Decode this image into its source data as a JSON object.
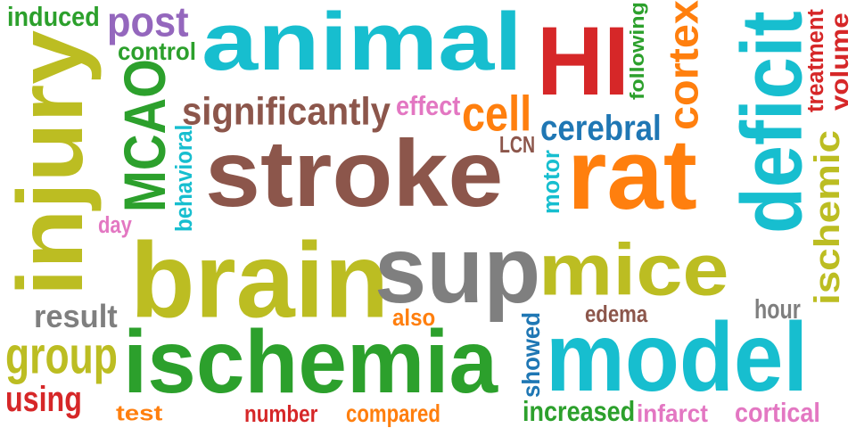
{
  "words": [
    {
      "text": "induced",
      "color": "#2ca02c"
    },
    {
      "text": "post",
      "color": "#9467bd"
    },
    {
      "text": "animal",
      "color": "#17becf"
    },
    {
      "text": "HI",
      "color": "#d62728"
    },
    {
      "text": "following",
      "color": "#2ca02c"
    },
    {
      "text": "cortex",
      "color": "#ff7f0e"
    },
    {
      "text": "deficit",
      "color": "#17becf"
    },
    {
      "text": "treatment",
      "color": "#d62728"
    },
    {
      "text": "volume",
      "color": "#d62728"
    },
    {
      "text": "control",
      "color": "#2ca02c"
    },
    {
      "text": "injury",
      "color": "#bcbd22"
    },
    {
      "text": "MCAO",
      "color": "#2ca02c"
    },
    {
      "text": "significantly",
      "color": "#8c564b"
    },
    {
      "text": "effect",
      "color": "#e377c2"
    },
    {
      "text": "cell",
      "color": "#ff7f0e"
    },
    {
      "text": "cerebral",
      "color": "#1f77b4"
    },
    {
      "text": "behavioral",
      "color": "#17becf"
    },
    {
      "text": "stroke",
      "color": "#8c564b"
    },
    {
      "text": "LCN",
      "color": "#8c564b"
    },
    {
      "text": "rat",
      "color": "#ff7f0e"
    },
    {
      "text": "motor",
      "color": "#17becf"
    },
    {
      "text": "ischemic",
      "color": "#bcbd22"
    },
    {
      "text": "day",
      "color": "#e377c2"
    },
    {
      "text": "brain",
      "color": "#bcbd22"
    },
    {
      "text": "sup",
      "color": "#7f7f7f"
    },
    {
      "text": "mice",
      "color": "#bcbd22"
    },
    {
      "text": "result",
      "color": "#7f7f7f"
    },
    {
      "text": "also",
      "color": "#ff7f0e"
    },
    {
      "text": "edema",
      "color": "#8c564b"
    },
    {
      "text": "hour",
      "color": "#7f7f7f"
    },
    {
      "text": "group",
      "color": "#bcbd22"
    },
    {
      "text": "ischemia",
      "color": "#2ca02c"
    },
    {
      "text": "showed",
      "color": "#1f77b4"
    },
    {
      "text": "model",
      "color": "#17becf"
    },
    {
      "text": "using",
      "color": "#d62728"
    },
    {
      "text": "test",
      "color": "#ff7f0e"
    },
    {
      "text": "number",
      "color": "#d62728"
    },
    {
      "text": "compared",
      "color": "#ff7f0e"
    },
    {
      "text": "increased",
      "color": "#2ca02c"
    },
    {
      "text": "infarct",
      "color": "#e377c2"
    },
    {
      "text": "cortical",
      "color": "#e377c2"
    }
  ]
}
